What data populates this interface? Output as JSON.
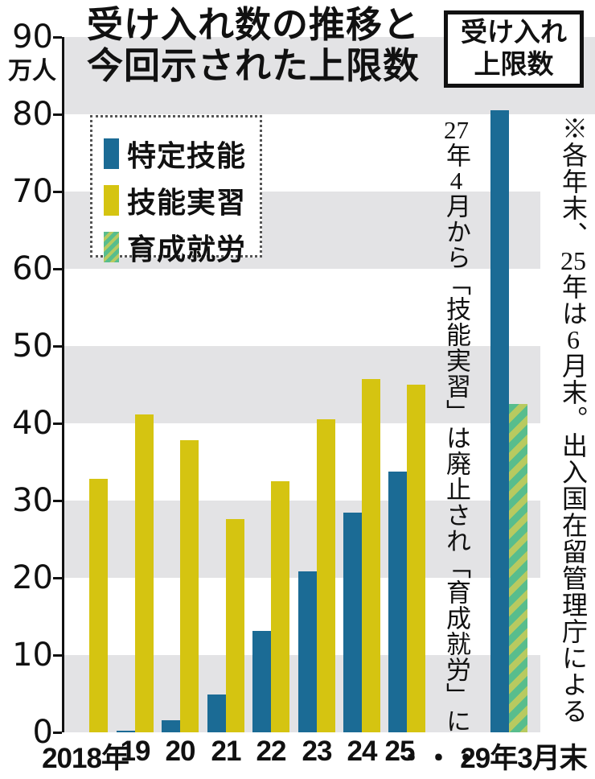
{
  "title": {
    "line1": "受け入れ数の推移と",
    "line2": "今回示された上限数"
  },
  "limit_box": {
    "line1": "受け入れ",
    "line2": "上限数"
  },
  "axis": {
    "unit": "万人"
  },
  "legend": {
    "items": [
      "特定技能",
      "技能実習",
      "育成就労"
    ]
  },
  "notes": {
    "center_vertical": "27年4月から「技能実習」は廃止され「育成就労」に",
    "right_vertical": "※各年末、25年は6月末。出入国在留管理庁による"
  },
  "colors": {
    "tokutei_blue": "#1b6b95",
    "jisshu_yellow": "#d5c411",
    "ikusei_green": "#58bd8d",
    "ikusei_stripe": "#b8ca60",
    "band_gray": "#e3e3e5",
    "text": "#111111"
  },
  "chart_data": {
    "type": "bar",
    "title": "受け入れ数の推移と今回示された上限数",
    "ylabel": "万人",
    "ylim": [
      0,
      90
    ],
    "yticks": [
      90,
      80,
      70,
      60,
      50,
      40,
      30,
      20,
      10,
      0
    ],
    "categories": [
      "2018年",
      "19",
      "20",
      "21",
      "22",
      "23",
      "24",
      "25",
      "・・・",
      "29年3月末"
    ],
    "series": [
      {
        "name": "特定技能",
        "style": "solid-blue",
        "values": [
          null,
          0.2,
          1.6,
          4.9,
          13.1,
          20.8,
          28.4,
          33.7,
          null,
          80.5
        ]
      },
      {
        "name": "技能実習",
        "style": "solid-yellow",
        "values": [
          32.8,
          41.1,
          37.8,
          27.6,
          32.5,
          40.5,
          45.7,
          45.0,
          null,
          null
        ]
      },
      {
        "name": "育成就労",
        "style": "green-diagonal-hatch",
        "values": [
          null,
          null,
          null,
          null,
          null,
          null,
          null,
          null,
          null,
          42.5
        ]
      }
    ],
    "legend_position": "upper-left",
    "grid": "alternating horizontal gray bands every 10 units",
    "annotations": [
      "受け入れ上限数",
      "27年4月から「技能実習」は廃止され「育成就労」に",
      "※各年末、25年は6月末。出入国在留管理庁による"
    ]
  }
}
